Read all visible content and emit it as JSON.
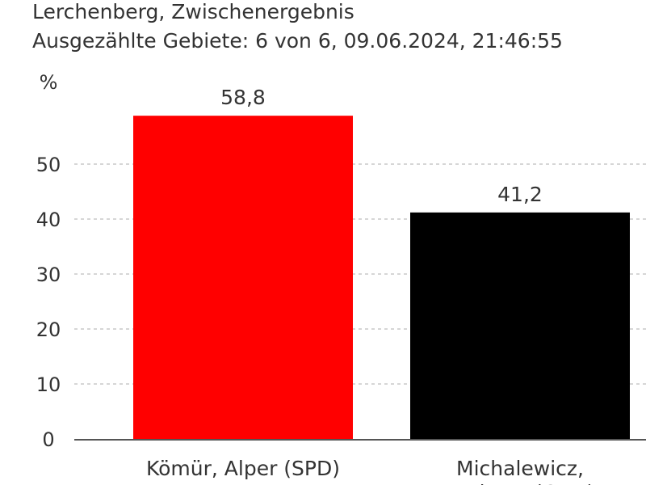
{
  "chart_data": {
    "type": "bar",
    "title": "Lerchenberg, Zwischenergebnis",
    "subtitle": "Ausgezählte Gebiete: 6 von 6, 09.06.2024, 21:46:55",
    "ylabel": "%",
    "xlabel": "",
    "ylim": [
      0,
      65
    ],
    "yticks": [
      0,
      10,
      20,
      30,
      40,
      50
    ],
    "grid": true,
    "categories": [
      [
        "Kömür, Alper (SPD)"
      ],
      [
        "Michalewicz,",
        "Andreas (CDU)"
      ]
    ],
    "values": [
      58.8,
      41.2
    ],
    "value_labels": [
      "58,8",
      "41,2"
    ],
    "colors": [
      "#ff0000",
      "#000000"
    ]
  }
}
